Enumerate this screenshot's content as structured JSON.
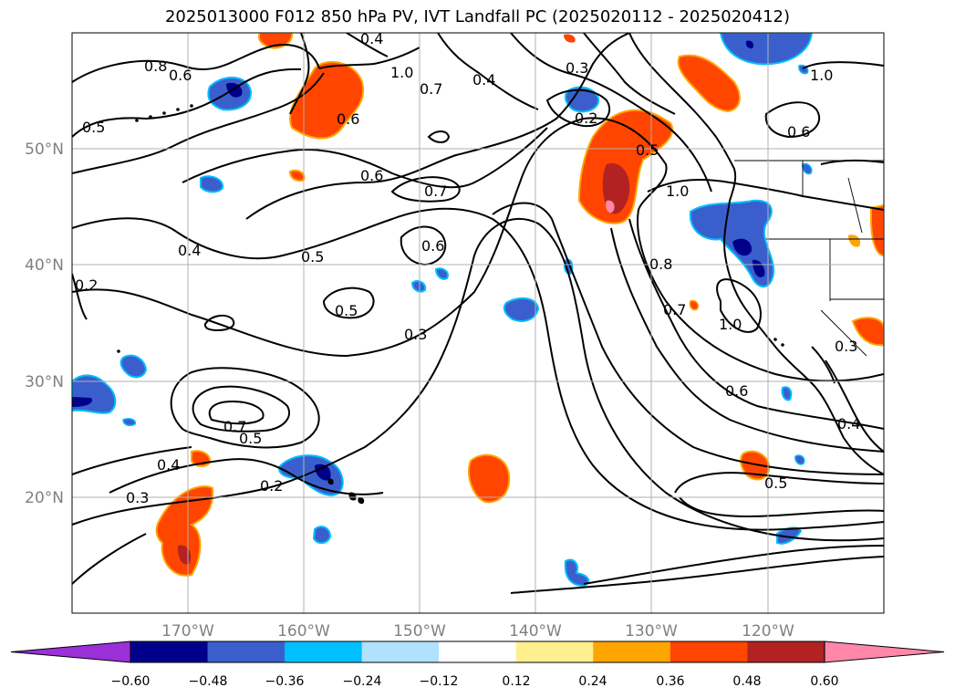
{
  "title": "2025013000 F012 850 hPa PV, IVT Landfall PC (2025020112 - 2025020412)",
  "lon_labels": [
    "170°W",
    "160°W",
    "150°W",
    "140°W",
    "130°W",
    "120°W"
  ],
  "lat_labels": [
    "50°N",
    "40°N",
    "30°N",
    "20°N"
  ],
  "contour_labels": [
    "0.8",
    "0.6",
    "0.5",
    "0.6",
    "0.4",
    "1.0",
    "0.7",
    "0.4",
    "0.3",
    "0.2",
    "0.5",
    "0.6",
    "1.0",
    "0.6",
    "0.7",
    "1.0",
    "0.4",
    "0.5",
    "0.6",
    "0.5",
    "0.3",
    "0.8",
    "0.7",
    "1.0",
    "0.6",
    "0.5",
    "0.7",
    "0.4",
    "0.3",
    "0.2",
    "0.5",
    "0.3",
    "0.4",
    "0.2"
  ],
  "colorbar": {
    "tick_labels": [
      "−0.60",
      "−0.48",
      "−0.36",
      "−0.24",
      "−0.12",
      "0.12",
      "0.24",
      "0.36",
      "0.48",
      "0.60"
    ],
    "colors": [
      "#9b30d9",
      "#00008b",
      "#3a5fcd",
      "#00bfff",
      "#b0e2ff",
      "#ffffff",
      "#fff08f",
      "#ffa500",
      "#ff4500",
      "#b22222",
      "#ff88aa"
    ]
  }
}
